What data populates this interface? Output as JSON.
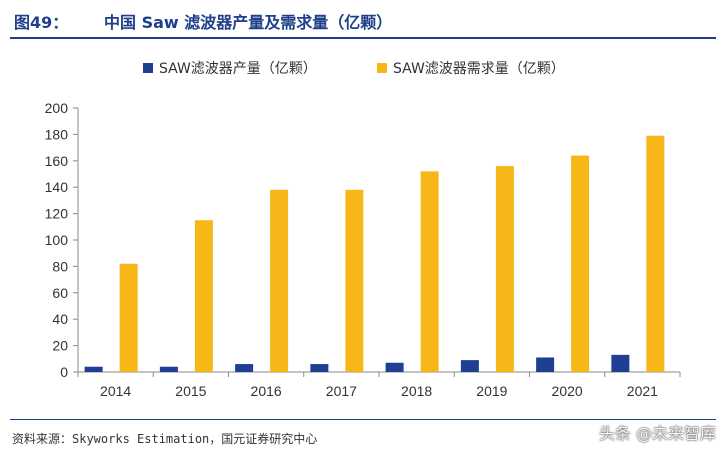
{
  "header": {
    "figure_label": "图49：",
    "title": "中国 Saw 滤波器产量及需求量（亿颗）"
  },
  "source_note": "资料来源：Skyworks Estimation，国元证券研究中心",
  "watermark": "头条 @未来智库",
  "chart_data": {
    "type": "bar",
    "categories": [
      "2014",
      "2015",
      "2016",
      "2017",
      "2018",
      "2019",
      "2020",
      "2021"
    ],
    "series": [
      {
        "name": "SAW滤波器产量（亿颗）",
        "color": "#1f3f95",
        "values": [
          4,
          4,
          6,
          6,
          7,
          9,
          11,
          13
        ]
      },
      {
        "name": "SAW滤波器需求量（亿颗）",
        "color": "#f7b718",
        "values": [
          82,
          115,
          138,
          138,
          152,
          156,
          164,
          179
        ]
      }
    ],
    "ylim": [
      0,
      200
    ],
    "yticks": [
      "0",
      "20",
      "40",
      "60",
      "80",
      "100",
      "120",
      "140",
      "160",
      "180",
      "200"
    ],
    "grid": false,
    "legend_position": "top"
  }
}
